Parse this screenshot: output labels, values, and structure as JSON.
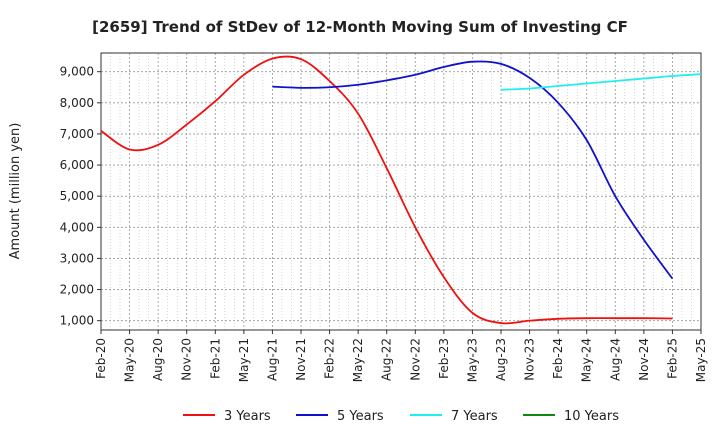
{
  "chart_data": {
    "type": "line",
    "title": "[2659]  Trend of StDev of 12-Month Moving Sum of Investing CF",
    "ylabel": "Amount (million yen)",
    "xlabel": "",
    "ylim": [
      700,
      9600
    ],
    "yticks": [
      1000,
      2000,
      3000,
      4000,
      5000,
      6000,
      7000,
      8000,
      9000
    ],
    "ytick_labels": [
      "1,000",
      "2,000",
      "3,000",
      "4,000",
      "5,000",
      "6,000",
      "7,000",
      "8,000",
      "9,000"
    ],
    "x_start": "Feb-20",
    "x_step_months": 3,
    "xtick_labels": [
      "Feb-20",
      "May-20",
      "Aug-20",
      "Nov-20",
      "Feb-21",
      "May-21",
      "Aug-21",
      "Nov-21",
      "Feb-22",
      "May-22",
      "Aug-22",
      "Nov-22",
      "Feb-23",
      "May-23",
      "Aug-23",
      "Nov-23",
      "Feb-24",
      "May-24",
      "Aug-24",
      "Nov-24",
      "Feb-25",
      "May-25"
    ],
    "grid": true,
    "legend_position": "bottom",
    "series": [
      {
        "name": "3 Years",
        "color": "#ee1111",
        "start": "Feb-20",
        "values": [
          7100,
          6500,
          6650,
          7300,
          8050,
          8900,
          9420,
          9400,
          8700,
          7650,
          5900,
          4000,
          2400,
          1250,
          920,
          1000,
          1060,
          1080,
          1080,
          1080,
          1070
        ]
      },
      {
        "name": "5 Years",
        "color": "#1111cc",
        "start": "Aug-21",
        "values": [
          8520,
          8480,
          8500,
          8580,
          8720,
          8900,
          9150,
          9320,
          9250,
          8800,
          8000,
          6800,
          5000,
          3600,
          2350
        ]
      },
      {
        "name": "7 Years",
        "color": "#22eeee",
        "start": "Aug-23",
        "values": [
          8420,
          8460,
          8540,
          8620,
          8700,
          8780,
          8860,
          8920
        ]
      },
      {
        "name": "10 Years",
        "color": "#118811",
        "start": "",
        "values": []
      }
    ]
  }
}
